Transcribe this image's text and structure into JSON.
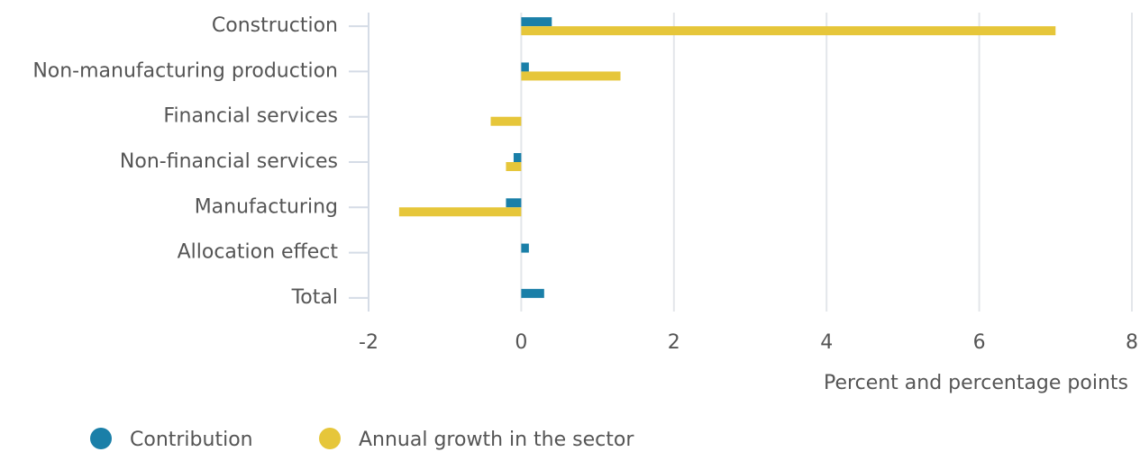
{
  "chart_data": {
    "type": "hbar",
    "x_label": "Percent and percentage points",
    "categories": [
      "Construction",
      "Non-manufacturing production",
      "Financial services",
      "Non-financial services",
      "Manufacturing",
      "Allocation effect",
      "Total"
    ],
    "series": [
      {
        "name": "Contribution",
        "color": "#1a7fa8",
        "values": [
          0.4,
          0.1,
          null,
          -0.1,
          -0.2,
          0.1,
          0.3
        ]
      },
      {
        "name": "Annual growth in the sector",
        "color": "#e6c63a",
        "values": [
          7.0,
          1.3,
          -0.4,
          -0.2,
          -1.6,
          null,
          null
        ]
      }
    ],
    "xlim": [
      -2,
      8
    ],
    "xticks": [
      -2,
      0,
      2,
      4,
      6,
      8
    ],
    "grid": true,
    "legend": "bottom"
  }
}
